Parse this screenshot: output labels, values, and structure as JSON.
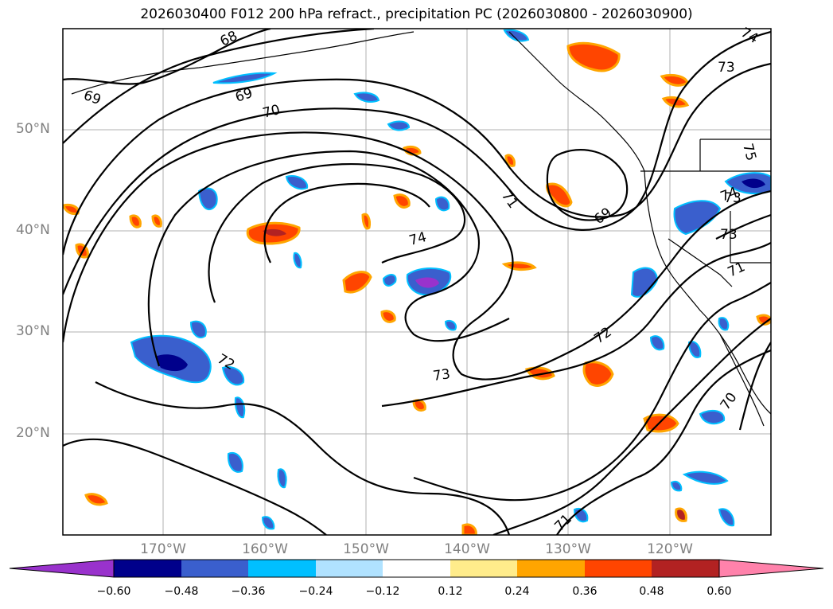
{
  "title": "2026030400 F012 200 hPa refract., precipitation PC (2026030800 - 2026030900)",
  "map": {
    "lat_labels": [
      "50°N",
      "40°N",
      "30°N",
      "20°N"
    ],
    "lon_labels": [
      "170°W",
      "160°W",
      "150°W",
      "140°W",
      "130°W",
      "120°W"
    ],
    "contour_labels": [
      "68",
      "69",
      "69",
      "70",
      "71",
      "69",
      "74",
      "73",
      "72",
      "72",
      "73",
      "71",
      "70",
      "71",
      "73",
      "74",
      "73",
      "75",
      "74"
    ]
  },
  "colorbar": {
    "colors": [
      "#9932cc",
      "#00008b",
      "#3a5fcd",
      "#00bfff",
      "#b0e2ff",
      "#ffffff",
      "#ffec8b",
      "#ffa500",
      "#ff4500",
      "#b22222",
      "#ff82ab"
    ],
    "ticks": [
      "−0.60",
      "−0.48",
      "−0.36",
      "−0.24",
      "−0.12",
      "0.12",
      "0.24",
      "0.36",
      "0.48",
      "0.60"
    ]
  }
}
